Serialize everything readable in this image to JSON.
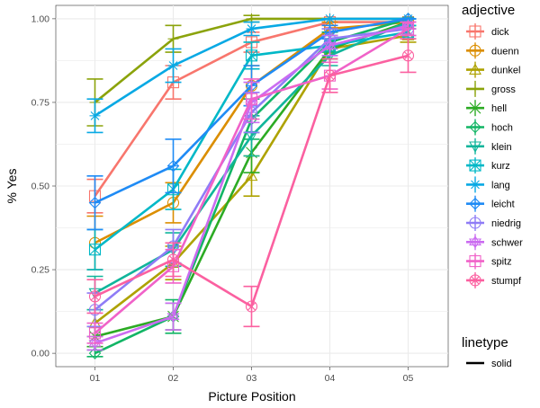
{
  "chart_data": {
    "type": "line",
    "xlabel": "Picture Position",
    "ylabel": "% Yes",
    "categories": [
      "01",
      "02",
      "03",
      "04",
      "05"
    ],
    "ylim": [
      -0.04,
      1.04
    ],
    "yticks": [
      0,
      0.25,
      0.5,
      0.75,
      1
    ],
    "ytick_labels": [
      "0.00",
      "0.25",
      "0.50",
      "0.75",
      "1.00"
    ],
    "grid": true,
    "background": "#ffffff",
    "grid_color": "#ebebeb",
    "legend": {
      "title": "adjective",
      "placement": "right",
      "linetype_title": "linetype",
      "linetype_label": "solid"
    },
    "series": [
      {
        "name": "dick",
        "color": "#F8766D",
        "marker": "square",
        "values": [
          0.47,
          0.81,
          0.93,
          0.99,
          0.99
        ],
        "errors": [
          0.05,
          0.05,
          0.03,
          0.01,
          0.01
        ]
      },
      {
        "name": "duenn",
        "color": "#DB8E00",
        "marker": "circle",
        "values": [
          0.33,
          0.45,
          0.8,
          0.97,
          0.99
        ],
        "errors": [
          0.08,
          0.06,
          0.06,
          0.02,
          0.01
        ]
      },
      {
        "name": "dunkel",
        "color": "#AEA200",
        "marker": "triangle",
        "values": [
          0.09,
          0.27,
          0.53,
          0.91,
          0.95
        ],
        "errors": [
          0.04,
          0.05,
          0.06,
          0.03,
          0.02
        ]
      },
      {
        "name": "gross",
        "color": "#8BA30B",
        "marker": "plus",
        "values": [
          0.75,
          0.94,
          1.0,
          1.0,
          1.0
        ],
        "errors": [
          0.07,
          0.04,
          0.01,
          0.0,
          0.0
        ]
      },
      {
        "name": "hell",
        "color": "#2CAB24",
        "marker": "cross",
        "values": [
          0.05,
          0.11,
          0.6,
          0.91,
          0.99
        ],
        "errors": [
          0.03,
          0.04,
          0.06,
          0.03,
          0.01
        ]
      },
      {
        "name": "hoch",
        "color": "#12B565",
        "marker": "diamond",
        "values": [
          0.0,
          0.11,
          0.7,
          0.93,
          1.0
        ],
        "errors": [
          0.01,
          0.05,
          0.06,
          0.03,
          0.0
        ]
      },
      {
        "name": "klein",
        "color": "#10B59B",
        "marker": "triangle-down",
        "values": [
          0.18,
          0.31,
          0.65,
          0.89,
          0.99
        ],
        "errors": [
          0.05,
          0.05,
          0.06,
          0.03,
          0.01
        ]
      },
      {
        "name": "kurz",
        "color": "#00B8C7",
        "marker": "square-x",
        "values": [
          0.31,
          0.49,
          0.89,
          0.92,
          0.96
        ],
        "errors": [
          0.06,
          0.06,
          0.04,
          0.03,
          0.02
        ]
      },
      {
        "name": "lang",
        "color": "#08A9E4",
        "marker": "asterisk",
        "values": [
          0.71,
          0.86,
          0.97,
          1.0,
          1.0
        ],
        "errors": [
          0.05,
          0.05,
          0.02,
          0.0,
          0.0
        ]
      },
      {
        "name": "leicht",
        "color": "#1F8BF5",
        "marker": "diamond-plus",
        "values": [
          0.45,
          0.56,
          0.8,
          0.96,
          1.0
        ],
        "errors": [
          0.08,
          0.08,
          0.06,
          0.02,
          0.0
        ]
      },
      {
        "name": "niedrig",
        "color": "#8F7CF6",
        "marker": "circle-plus",
        "values": [
          0.13,
          0.32,
          0.72,
          0.94,
          0.97
        ],
        "errors": [
          0.05,
          0.05,
          0.06,
          0.03,
          0.02
        ]
      },
      {
        "name": "schwer",
        "color": "#CB6CF1",
        "marker": "star",
        "values": [
          0.03,
          0.11,
          0.75,
          0.92,
          0.98
        ],
        "errors": [
          0.02,
          0.04,
          0.06,
          0.03,
          0.01
        ]
      },
      {
        "name": "spitz",
        "color": "#F062C8",
        "marker": "square-plus",
        "values": [
          0.06,
          0.26,
          0.76,
          0.83,
          0.97
        ],
        "errors": [
          0.03,
          0.05,
          0.06,
          0.04,
          0.02
        ]
      },
      {
        "name": "stumpf",
        "color": "#FB60A0",
        "marker": "circle-x",
        "values": [
          0.17,
          0.28,
          0.14,
          0.83,
          0.89
        ],
        "errors": [
          0.05,
          0.05,
          0.06,
          0.05,
          0.05
        ]
      }
    ]
  }
}
